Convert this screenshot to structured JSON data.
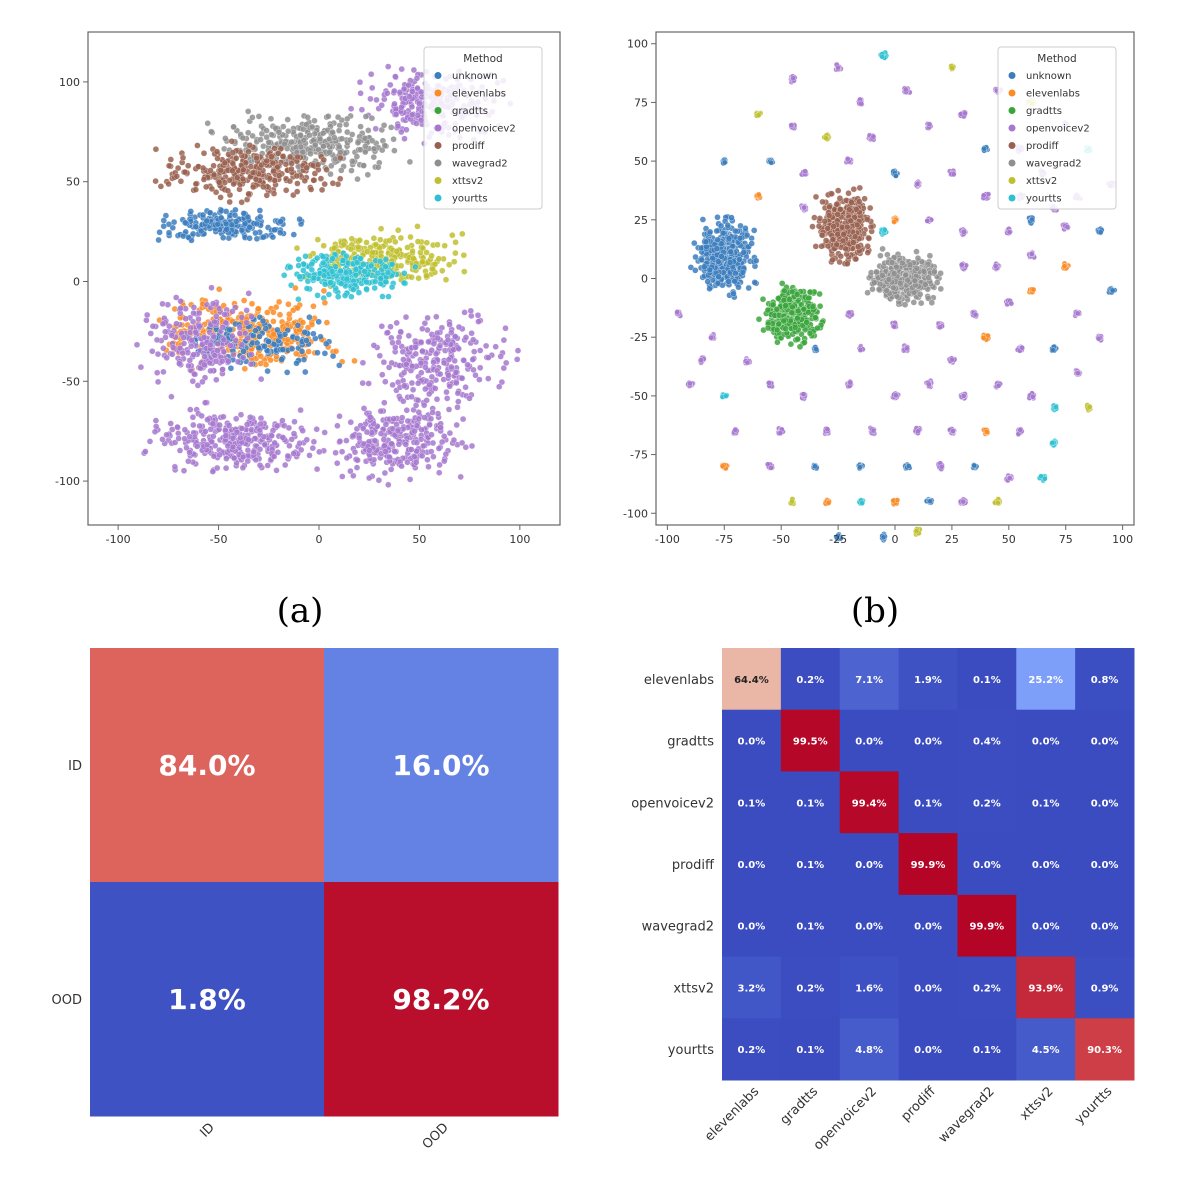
{
  "captions": {
    "a": "(a)",
    "b": "(b)"
  },
  "colors": {
    "unknown": "#3b7dbd",
    "elevenlabs": "#fb8b25",
    "gradtts": "#3aa53b",
    "openvoicev2": "#a678cf",
    "prodiff": "#99604f",
    "wavegrad2": "#8f8f8f",
    "xttsv2": "#bfc02e",
    "yourtts": "#2ec1d2",
    "cm_low": "#3a4cc0",
    "cm_high": "#b40426"
  },
  "chart_data": [
    {
      "type": "scatter",
      "id": "tsne_a",
      "xlim": [
        -115,
        120
      ],
      "ylim": [
        -122,
        125
      ],
      "xticks": [
        -100,
        -50,
        0,
        50,
        100
      ],
      "yticks": [
        100,
        50,
        0,
        -50,
        -100
      ],
      "grid": false,
      "legend": {
        "title": "Method",
        "placement": "top-right",
        "entries": [
          "unknown",
          "elevenlabs",
          "gradtts",
          "openvoicev2",
          "prodiff",
          "wavegrad2",
          "xttsv2",
          "yourtts"
        ]
      },
      "clusters": [
        {
          "method": "openvoicev2",
          "cx": 55,
          "cy": 90,
          "rx": 45,
          "ry": 22,
          "n": 260
        },
        {
          "method": "wavegrad2",
          "cx": -5,
          "cy": 68,
          "rx": 60,
          "ry": 20,
          "n": 320
        },
        {
          "method": "prodiff",
          "cx": -35,
          "cy": 55,
          "rx": 55,
          "ry": 18,
          "n": 300
        },
        {
          "method": "unknown",
          "cx": -45,
          "cy": 28,
          "rx": 45,
          "ry": 10,
          "n": 200
        },
        {
          "method": "xttsv2",
          "cx": 30,
          "cy": 12,
          "rx": 50,
          "ry": 18,
          "n": 260
        },
        {
          "method": "yourtts",
          "cx": 15,
          "cy": 3,
          "rx": 40,
          "ry": 15,
          "n": 220
        },
        {
          "method": "elevenlabs",
          "cx": -35,
          "cy": -25,
          "rx": 60,
          "ry": 25,
          "n": 320
        },
        {
          "method": "unknown",
          "cx": -30,
          "cy": -30,
          "rx": 55,
          "ry": 20,
          "n": 140
        },
        {
          "method": "openvoicev2",
          "cx": -60,
          "cy": -30,
          "rx": 35,
          "ry": 30,
          "n": 220
        },
        {
          "method": "openvoicev2",
          "cx": 60,
          "cy": -40,
          "rx": 45,
          "ry": 35,
          "n": 260
        },
        {
          "method": "openvoicev2",
          "cx": -40,
          "cy": -80,
          "rx": 55,
          "ry": 20,
          "n": 320
        },
        {
          "method": "openvoicev2",
          "cx": 40,
          "cy": -80,
          "rx": 45,
          "ry": 25,
          "n": 280
        }
      ]
    },
    {
      "type": "scatter",
      "id": "tsne_b",
      "xlim": [
        -105,
        105
      ],
      "ylim": [
        -105,
        105
      ],
      "xticks": [
        -100,
        -75,
        -50,
        -25,
        0,
        25,
        50,
        75,
        100
      ],
      "yticks": [
        100,
        75,
        50,
        25,
        0,
        -25,
        -50,
        -75,
        -100
      ],
      "grid": false,
      "legend": {
        "title": "Method",
        "placement": "top-right",
        "entries": [
          "unknown",
          "elevenlabs",
          "gradtts",
          "openvoicev2",
          "prodiff",
          "wavegrad2",
          "xttsv2",
          "yourtts"
        ]
      },
      "clusters": [
        {
          "method": "unknown",
          "cx": -75,
          "cy": 10,
          "rx": 17,
          "ry": 20,
          "n": 420
        },
        {
          "method": "gradtts",
          "cx": -45,
          "cy": -15,
          "rx": 17,
          "ry": 15,
          "n": 380
        },
        {
          "method": "prodiff",
          "cx": -22,
          "cy": 22,
          "rx": 15,
          "ry": 20,
          "n": 380
        },
        {
          "method": "wavegrad2",
          "cx": 5,
          "cy": 0,
          "rx": 20,
          "ry": 14,
          "n": 380
        }
      ],
      "blobs": [
        [
          -5,
          95,
          "yourtts"
        ],
        [
          -25,
          90,
          "openvoicev2"
        ],
        [
          -45,
          85,
          "openvoicev2"
        ],
        [
          25,
          90,
          "xttsv2"
        ],
        [
          45,
          80,
          "openvoicev2"
        ],
        [
          60,
          75,
          "xttsv2"
        ],
        [
          75,
          65,
          "openvoicev2"
        ],
        [
          85,
          55,
          "yourtts"
        ],
        [
          95,
          40,
          "openvoicev2"
        ],
        [
          -15,
          75,
          "openvoicev2"
        ],
        [
          5,
          80,
          "openvoicev2"
        ],
        [
          15,
          65,
          "openvoicev2"
        ],
        [
          -60,
          70,
          "xttsv2"
        ],
        [
          -45,
          65,
          "openvoicev2"
        ],
        [
          -30,
          60,
          "xttsv2"
        ],
        [
          -10,
          60,
          "openvoicev2"
        ],
        [
          30,
          70,
          "openvoicev2"
        ],
        [
          40,
          55,
          "unknown"
        ],
        [
          55,
          55,
          "openvoicev2"
        ],
        [
          65,
          45,
          "openvoicev2"
        ],
        [
          80,
          35,
          "openvoicev2"
        ],
        [
          -75,
          50,
          "unknown"
        ],
        [
          -55,
          50,
          "unknown"
        ],
        [
          -40,
          45,
          "openvoicev2"
        ],
        [
          -20,
          50,
          "openvoicev2"
        ],
        [
          0,
          45,
          "unknown"
        ],
        [
          10,
          40,
          "openvoicev2"
        ],
        [
          25,
          45,
          "openvoicev2"
        ],
        [
          40,
          35,
          "openvoicev2"
        ],
        [
          55,
          35,
          "openvoicev2"
        ],
        [
          70,
          30,
          "openvoicev2"
        ],
        [
          -60,
          35,
          "elevenlabs"
        ],
        [
          -40,
          30,
          "openvoicev2"
        ],
        [
          0,
          25,
          "elevenlabs"
        ],
        [
          15,
          25,
          "openvoicev2"
        ],
        [
          30,
          20,
          "openvoicev2"
        ],
        [
          50,
          20,
          "openvoicev2"
        ],
        [
          60,
          25,
          "unknown"
        ],
        [
          75,
          22,
          "openvoicev2"
        ],
        [
          90,
          20,
          "unknown"
        ],
        [
          -5,
          20,
          "yourtts"
        ],
        [
          30,
          5,
          "openvoicev2"
        ],
        [
          45,
          5,
          "openvoicev2"
        ],
        [
          60,
          10,
          "openvoicev2"
        ],
        [
          75,
          5,
          "elevenlabs"
        ],
        [
          95,
          -5,
          "unknown"
        ],
        [
          -95,
          -15,
          "openvoicev2"
        ],
        [
          -80,
          -25,
          "openvoicev2"
        ],
        [
          -20,
          -15,
          "openvoicev2"
        ],
        [
          0,
          -20,
          "openvoicev2"
        ],
        [
          20,
          -20,
          "openvoicev2"
        ],
        [
          35,
          -15,
          "openvoicev2"
        ],
        [
          50,
          -10,
          "openvoicev2"
        ],
        [
          60,
          -5,
          "elevenlabs"
        ],
        [
          80,
          -15,
          "openvoicev2"
        ],
        [
          90,
          -25,
          "openvoicev2"
        ],
        [
          -85,
          -35,
          "openvoicev2"
        ],
        [
          -65,
          -35,
          "openvoicev2"
        ],
        [
          -35,
          -30,
          "unknown"
        ],
        [
          -15,
          -30,
          "openvoicev2"
        ],
        [
          5,
          -30,
          "openvoicev2"
        ],
        [
          25,
          -35,
          "openvoicev2"
        ],
        [
          40,
          -25,
          "elevenlabs"
        ],
        [
          55,
          -30,
          "openvoicev2"
        ],
        [
          70,
          -30,
          "unknown"
        ],
        [
          80,
          -40,
          "openvoicev2"
        ],
        [
          -90,
          -45,
          "openvoicev2"
        ],
        [
          -75,
          -50,
          "yourtts"
        ],
        [
          -55,
          -45,
          "openvoicev2"
        ],
        [
          -40,
          -50,
          "openvoicev2"
        ],
        [
          -20,
          -45,
          "openvoicev2"
        ],
        [
          0,
          -50,
          "openvoicev2"
        ],
        [
          15,
          -45,
          "openvoicev2"
        ],
        [
          30,
          -50,
          "openvoicev2"
        ],
        [
          45,
          -45,
          "openvoicev2"
        ],
        [
          60,
          -50,
          "openvoicev2"
        ],
        [
          70,
          -55,
          "yourtts"
        ],
        [
          85,
          -55,
          "xttsv2"
        ],
        [
          -70,
          -65,
          "openvoicev2"
        ],
        [
          -50,
          -65,
          "openvoicev2"
        ],
        [
          -30,
          -65,
          "openvoicev2"
        ],
        [
          -10,
          -65,
          "openvoicev2"
        ],
        [
          10,
          -65,
          "openvoicev2"
        ],
        [
          25,
          -65,
          "openvoicev2"
        ],
        [
          40,
          -65,
          "elevenlabs"
        ],
        [
          55,
          -65,
          "openvoicev2"
        ],
        [
          70,
          -70,
          "yourtts"
        ],
        [
          -75,
          -80,
          "elevenlabs"
        ],
        [
          -55,
          -80,
          "openvoicev2"
        ],
        [
          -35,
          -80,
          "unknown"
        ],
        [
          -15,
          -80,
          "unknown"
        ],
        [
          5,
          -80,
          "unknown"
        ],
        [
          20,
          -80,
          "openvoicev2"
        ],
        [
          35,
          -80,
          "unknown"
        ],
        [
          50,
          -85,
          "openvoicev2"
        ],
        [
          65,
          -85,
          "yourtts"
        ],
        [
          -45,
          -95,
          "xttsv2"
        ],
        [
          -30,
          -95,
          "elevenlabs"
        ],
        [
          -15,
          -95,
          "yourtts"
        ],
        [
          0,
          -95,
          "elevenlabs"
        ],
        [
          15,
          -95,
          "unknown"
        ],
        [
          30,
          -95,
          "openvoicev2"
        ],
        [
          45,
          -95,
          "xttsv2"
        ],
        [
          -25,
          -110,
          "unknown"
        ],
        [
          -5,
          -110,
          "unknown"
        ],
        [
          10,
          -108,
          "xttsv2"
        ]
      ]
    },
    {
      "type": "heatmap",
      "id": "cm_binary",
      "rows": [
        "ID",
        "OOD"
      ],
      "cols": [
        "ID",
        "OOD"
      ],
      "values": [
        [
          84.0,
          16.0
        ],
        [
          1.8,
          98.2
        ]
      ],
      "labels": [
        [
          "84.0%",
          "16.0%"
        ],
        [
          "1.8%",
          "98.2%"
        ]
      ],
      "colormap": "coolwarm"
    },
    {
      "type": "heatmap",
      "id": "cm_methods",
      "rows": [
        "elevenlabs",
        "gradtts",
        "openvoicev2",
        "prodiff",
        "wavegrad2",
        "xttsv2",
        "yourtts"
      ],
      "cols": [
        "elevenlabs",
        "gradtts",
        "openvoicev2",
        "prodiff",
        "wavegrad2",
        "xttsv2",
        "yourtts"
      ],
      "values": [
        [
          64.4,
          0.2,
          7.1,
          1.9,
          0.1,
          25.2,
          0.8
        ],
        [
          0.0,
          99.5,
          0.0,
          0.0,
          0.4,
          0.0,
          0.0
        ],
        [
          0.1,
          0.1,
          99.4,
          0.1,
          0.2,
          0.1,
          0.0
        ],
        [
          0.0,
          0.1,
          0.0,
          99.9,
          0.0,
          0.0,
          0.0
        ],
        [
          0.0,
          0.1,
          0.0,
          0.0,
          99.9,
          0.0,
          0.0
        ],
        [
          3.2,
          0.2,
          1.6,
          0.0,
          0.2,
          93.9,
          0.9
        ],
        [
          0.2,
          0.1,
          4.8,
          0.0,
          0.1,
          4.5,
          90.3
        ]
      ],
      "labels": [
        [
          "64.4%",
          "0.2%",
          "7.1%",
          "1.9%",
          "0.1%",
          "25.2%",
          "0.8%"
        ],
        [
          "0.0%",
          "99.5%",
          "0.0%",
          "0.0%",
          "0.4%",
          "0.0%",
          "0.0%"
        ],
        [
          "0.1%",
          "0.1%",
          "99.4%",
          "0.1%",
          "0.2%",
          "0.1%",
          "0.0%"
        ],
        [
          "0.0%",
          "0.1%",
          "0.0%",
          "99.9%",
          "0.0%",
          "0.0%",
          "0.0%"
        ],
        [
          "0.0%",
          "0.1%",
          "0.0%",
          "0.0%",
          "99.9%",
          "0.0%",
          "0.0%"
        ],
        [
          "3.2%",
          "0.2%",
          "1.6%",
          "0.0%",
          "0.2%",
          "93.9%",
          "0.9%"
        ],
        [
          "0.2%",
          "0.1%",
          "4.8%",
          "0.0%",
          "0.1%",
          "4.5%",
          "90.3%"
        ]
      ],
      "colormap": "coolwarm"
    }
  ]
}
